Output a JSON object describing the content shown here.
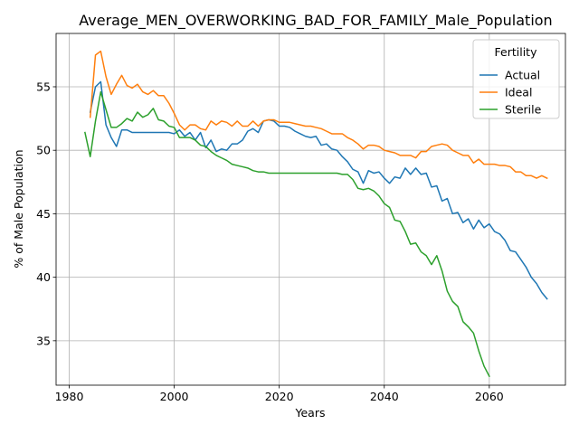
{
  "chart_data": {
    "type": "line",
    "title": "Average_MEN_OVERWORKING_BAD_FOR_FAMILY_Male_Population",
    "xlabel": "Years",
    "ylabel": "% of Male Population",
    "xlim": [
      1977.5,
      2074.5
    ],
    "ylim": [
      31.5,
      59.2
    ],
    "xticks": [
      1980,
      2000,
      2020,
      2040,
      2060
    ],
    "yticks": [
      35,
      40,
      45,
      50,
      55
    ],
    "grid": true,
    "legend": {
      "title": "Fertility",
      "placement": "top-right"
    },
    "series": [
      {
        "name": "Actual",
        "color": "#1f77b4",
        "points": [
          [
            1984,
            53.0
          ],
          [
            1985,
            55.0
          ],
          [
            1986,
            55.4
          ],
          [
            1987,
            52.0
          ],
          [
            1988,
            51.0
          ],
          [
            1989,
            50.3
          ],
          [
            1990,
            51.6
          ],
          [
            1991,
            51.6
          ],
          [
            1992,
            51.4
          ],
          [
            1993,
            51.4
          ],
          [
            1994,
            51.4
          ],
          [
            1995,
            51.4
          ],
          [
            1996,
            51.4
          ],
          [
            1997,
            51.4
          ],
          [
            1998,
            51.4
          ],
          [
            1999,
            51.4
          ],
          [
            2000,
            51.3
          ],
          [
            2001,
            51.6
          ],
          [
            2002,
            51.1
          ],
          [
            2003,
            51.4
          ],
          [
            2004,
            50.8
          ],
          [
            2005,
            51.4
          ],
          [
            2006,
            50.2
          ],
          [
            2007,
            50.8
          ],
          [
            2008,
            49.9
          ],
          [
            2009,
            50.1
          ],
          [
            2010,
            50.0
          ],
          [
            2011,
            50.5
          ],
          [
            2012,
            50.5
          ],
          [
            2013,
            50.8
          ],
          [
            2014,
            51.5
          ],
          [
            2015,
            51.7
          ],
          [
            2016,
            51.4
          ],
          [
            2017,
            52.3
          ],
          [
            2018,
            52.4
          ],
          [
            2019,
            52.3
          ],
          [
            2020,
            51.9
          ],
          [
            2021,
            51.9
          ],
          [
            2022,
            51.8
          ],
          [
            2023,
            51.5
          ],
          [
            2024,
            51.3
          ],
          [
            2025,
            51.1
          ],
          [
            2026,
            51.0
          ],
          [
            2027,
            51.1
          ],
          [
            2028,
            50.4
          ],
          [
            2029,
            50.5
          ],
          [
            2030,
            50.1
          ],
          [
            2031,
            50.0
          ],
          [
            2032,
            49.5
          ],
          [
            2033,
            49.1
          ],
          [
            2034,
            48.5
          ],
          [
            2035,
            48.3
          ],
          [
            2036,
            47.4
          ],
          [
            2037,
            48.4
          ],
          [
            2038,
            48.2
          ],
          [
            2039,
            48.3
          ],
          [
            2040,
            47.8
          ],
          [
            2041,
            47.4
          ],
          [
            2042,
            47.9
          ],
          [
            2043,
            47.8
          ],
          [
            2044,
            48.6
          ],
          [
            2045,
            48.1
          ],
          [
            2046,
            48.6
          ],
          [
            2047,
            48.1
          ],
          [
            2048,
            48.2
          ],
          [
            2049,
            47.1
          ],
          [
            2050,
            47.2
          ],
          [
            2051,
            46.0
          ],
          [
            2052,
            46.2
          ],
          [
            2053,
            45.0
          ],
          [
            2054,
            45.1
          ],
          [
            2055,
            44.3
          ],
          [
            2056,
            44.6
          ],
          [
            2057,
            43.8
          ],
          [
            2058,
            44.5
          ],
          [
            2059,
            43.9
          ],
          [
            2060,
            44.2
          ],
          [
            2061,
            43.6
          ],
          [
            2062,
            43.4
          ],
          [
            2063,
            42.9
          ],
          [
            2064,
            42.1
          ],
          [
            2065,
            42.0
          ],
          [
            2066,
            41.4
          ],
          [
            2067,
            40.8
          ],
          [
            2068,
            40.0
          ],
          [
            2069,
            39.5
          ],
          [
            2070,
            38.8
          ],
          [
            2071,
            38.3
          ]
        ]
      },
      {
        "name": "Ideal",
        "color": "#ff7f0e",
        "points": [
          [
            1984,
            52.6
          ],
          [
            1985,
            57.5
          ],
          [
            1986,
            57.8
          ],
          [
            1987,
            55.8
          ],
          [
            1988,
            54.4
          ],
          [
            1989,
            55.2
          ],
          [
            1990,
            55.9
          ],
          [
            1991,
            55.1
          ],
          [
            1992,
            54.9
          ],
          [
            1993,
            55.2
          ],
          [
            1994,
            54.6
          ],
          [
            1995,
            54.4
          ],
          [
            1996,
            54.7
          ],
          [
            1997,
            54.3
          ],
          [
            1998,
            54.3
          ],
          [
            1999,
            53.7
          ],
          [
            2000,
            52.9
          ],
          [
            2001,
            52.0
          ],
          [
            2002,
            51.6
          ],
          [
            2003,
            52.0
          ],
          [
            2004,
            52.0
          ],
          [
            2005,
            51.7
          ],
          [
            2006,
            51.6
          ],
          [
            2007,
            52.3
          ],
          [
            2008,
            52.0
          ],
          [
            2009,
            52.3
          ],
          [
            2010,
            52.2
          ],
          [
            2011,
            51.9
          ],
          [
            2012,
            52.3
          ],
          [
            2013,
            51.9
          ],
          [
            2014,
            51.9
          ],
          [
            2015,
            52.3
          ],
          [
            2016,
            51.9
          ],
          [
            2017,
            52.3
          ],
          [
            2018,
            52.4
          ],
          [
            2019,
            52.4
          ],
          [
            2020,
            52.2
          ],
          [
            2021,
            52.2
          ],
          [
            2022,
            52.2
          ],
          [
            2023,
            52.1
          ],
          [
            2024,
            52.0
          ],
          [
            2025,
            51.9
          ],
          [
            2026,
            51.9
          ],
          [
            2027,
            51.8
          ],
          [
            2028,
            51.7
          ],
          [
            2029,
            51.5
          ],
          [
            2030,
            51.3
          ],
          [
            2031,
            51.3
          ],
          [
            2032,
            51.3
          ],
          [
            2033,
            51.0
          ],
          [
            2034,
            50.8
          ],
          [
            2035,
            50.5
          ],
          [
            2036,
            50.1
          ],
          [
            2037,
            50.4
          ],
          [
            2038,
            50.4
          ],
          [
            2039,
            50.3
          ],
          [
            2040,
            50.0
          ],
          [
            2041,
            49.9
          ],
          [
            2042,
            49.8
          ],
          [
            2043,
            49.6
          ],
          [
            2044,
            49.6
          ],
          [
            2045,
            49.6
          ],
          [
            2046,
            49.4
          ],
          [
            2047,
            49.9
          ],
          [
            2048,
            49.9
          ],
          [
            2049,
            50.3
          ],
          [
            2050,
            50.4
          ],
          [
            2051,
            50.5
          ],
          [
            2052,
            50.4
          ],
          [
            2053,
            50.0
          ],
          [
            2054,
            49.8
          ],
          [
            2055,
            49.6
          ],
          [
            2056,
            49.6
          ],
          [
            2057,
            49.0
          ],
          [
            2058,
            49.3
          ],
          [
            2059,
            48.9
          ],
          [
            2060,
            48.9
          ],
          [
            2061,
            48.9
          ],
          [
            2062,
            48.8
          ],
          [
            2063,
            48.8
          ],
          [
            2064,
            48.7
          ],
          [
            2065,
            48.3
          ],
          [
            2066,
            48.3
          ],
          [
            2067,
            48.0
          ],
          [
            2068,
            48.0
          ],
          [
            2069,
            47.8
          ],
          [
            2070,
            48.0
          ],
          [
            2071,
            47.8
          ]
        ]
      },
      {
        "name": "Sterile",
        "color": "#2ca02c",
        "points": [
          [
            1983,
            51.4
          ],
          [
            1984,
            49.5
          ],
          [
            1985,
            52.3
          ],
          [
            1986,
            54.6
          ],
          [
            1987,
            53.2
          ],
          [
            1988,
            51.8
          ],
          [
            1989,
            51.8
          ],
          [
            1990,
            52.1
          ],
          [
            1991,
            52.5
          ],
          [
            1992,
            52.3
          ],
          [
            1993,
            53.0
          ],
          [
            1994,
            52.6
          ],
          [
            1995,
            52.8
          ],
          [
            1996,
            53.3
          ],
          [
            1997,
            52.4
          ],
          [
            1998,
            52.3
          ],
          [
            1999,
            51.9
          ],
          [
            2000,
            51.8
          ],
          [
            2001,
            51.0
          ],
          [
            2002,
            51.0
          ],
          [
            2003,
            51.0
          ],
          [
            2004,
            50.8
          ],
          [
            2005,
            50.4
          ],
          [
            2006,
            50.3
          ],
          [
            2007,
            49.9
          ],
          [
            2008,
            49.6
          ],
          [
            2009,
            49.4
          ],
          [
            2010,
            49.2
          ],
          [
            2011,
            48.9
          ],
          [
            2012,
            48.8
          ],
          [
            2013,
            48.7
          ],
          [
            2014,
            48.6
          ],
          [
            2015,
            48.4
          ],
          [
            2016,
            48.3
          ],
          [
            2017,
            48.3
          ],
          [
            2018,
            48.2
          ],
          [
            2019,
            48.2
          ],
          [
            2020,
            48.2
          ],
          [
            2021,
            48.2
          ],
          [
            2022,
            48.2
          ],
          [
            2023,
            48.2
          ],
          [
            2024,
            48.2
          ],
          [
            2025,
            48.2
          ],
          [
            2026,
            48.2
          ],
          [
            2027,
            48.2
          ],
          [
            2028,
            48.2
          ],
          [
            2029,
            48.2
          ],
          [
            2030,
            48.2
          ],
          [
            2031,
            48.2
          ],
          [
            2032,
            48.1
          ],
          [
            2033,
            48.1
          ],
          [
            2034,
            47.7
          ],
          [
            2035,
            47.0
          ],
          [
            2036,
            46.9
          ],
          [
            2037,
            47.0
          ],
          [
            2038,
            46.8
          ],
          [
            2039,
            46.4
          ],
          [
            2040,
            45.8
          ],
          [
            2041,
            45.5
          ],
          [
            2042,
            44.5
          ],
          [
            2043,
            44.4
          ],
          [
            2044,
            43.6
          ],
          [
            2045,
            42.6
          ],
          [
            2046,
            42.7
          ],
          [
            2047,
            42.0
          ],
          [
            2048,
            41.7
          ],
          [
            2049,
            41.0
          ],
          [
            2050,
            41.7
          ],
          [
            2051,
            40.5
          ],
          [
            2052,
            38.9
          ],
          [
            2053,
            38.1
          ],
          [
            2054,
            37.7
          ],
          [
            2055,
            36.5
          ],
          [
            2056,
            36.1
          ],
          [
            2057,
            35.6
          ],
          [
            2058,
            34.2
          ],
          [
            2059,
            33.0
          ],
          [
            2060,
            32.2
          ]
        ]
      }
    ]
  }
}
